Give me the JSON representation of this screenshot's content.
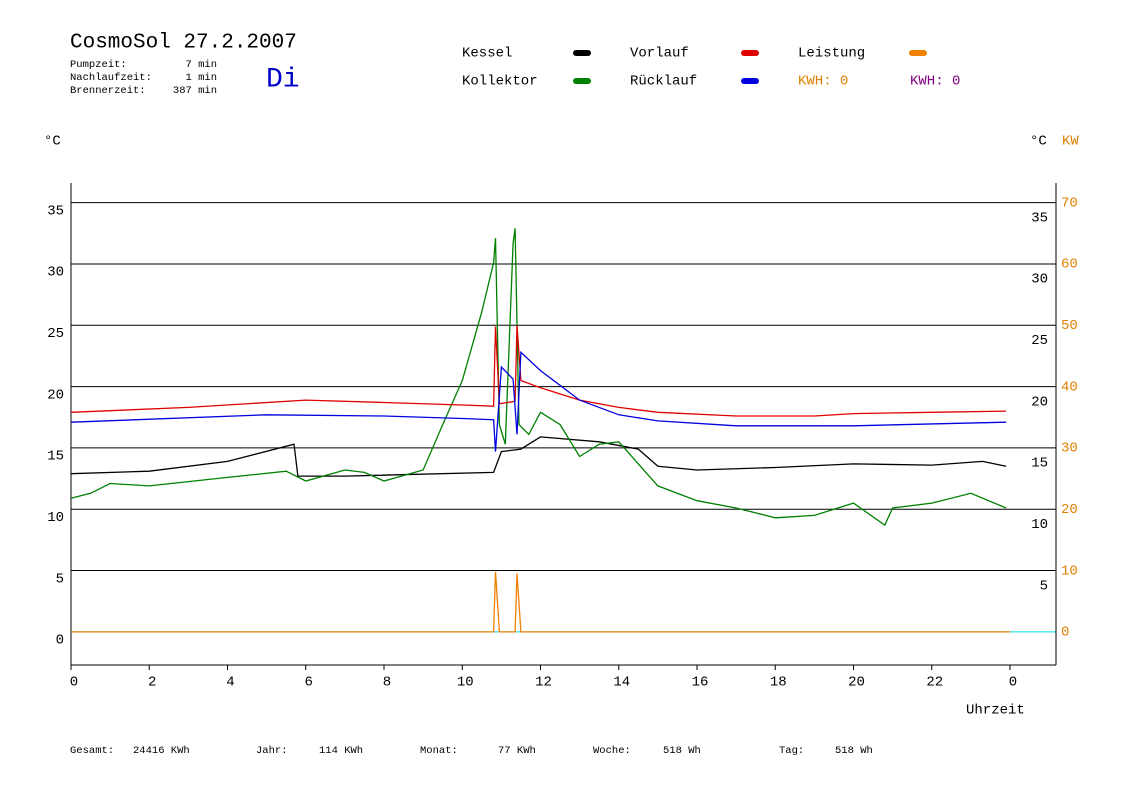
{
  "chart_data": {
    "type": "line",
    "title": "CosmoSol 27.2.2007",
    "weekday": "Di",
    "info": [
      [
        "Pumpzeit:",
        "7 min"
      ],
      [
        "Nachlaufzeit:",
        "1 min"
      ],
      [
        "Brennerzeit:",
        "387 min"
      ]
    ],
    "kwh_labels": [
      {
        "text": "KWH: 0",
        "color": "#e08000"
      },
      {
        "text": "KWH: 0",
        "color": "#800080"
      }
    ],
    "y_label": "°C",
    "y2_label_c": "°C",
    "y2_label": "KW",
    "x_label": "Uhrzeit",
    "xlim": [
      0,
      24
    ],
    "xticks": [
      0,
      2,
      4,
      6,
      8,
      10,
      12,
      14,
      16,
      18,
      20,
      22,
      {
        "value": 24,
        "label": "0"
      }
    ],
    "ylim": [
      -2.7,
      36.6
    ],
    "yticks": [
      0,
      5,
      10,
      15,
      20,
      25,
      30,
      35
    ],
    "y_right_ticks": [
      5,
      10,
      15,
      20,
      25,
      30,
      35
    ],
    "y2lim": [
      -5.4,
      73.2
    ],
    "y2ticks": [
      0,
      10,
      20,
      30,
      40,
      50,
      60,
      70
    ],
    "grid": true,
    "series": [
      {
        "name": "Kessel",
        "color": "#000000",
        "x": [
          0,
          2,
          4,
          5.7,
          5.8,
          7,
          10.8,
          11.0,
          11.5,
          12,
          13.5,
          14.5,
          15,
          16,
          18,
          20,
          22,
          23.3,
          23.9
        ],
        "values": [
          12.9,
          13.1,
          13.9,
          15.3,
          12.7,
          12.7,
          13.0,
          14.7,
          14.9,
          15.9,
          15.5,
          14.9,
          13.5,
          13.2,
          13.4,
          13.7,
          13.6,
          13.9,
          13.5
        ]
      },
      {
        "name": "Kollektor",
        "color": "#008000",
        "x": [
          0,
          0.5,
          1,
          2,
          4,
          5.5,
          6,
          7,
          7.5,
          8,
          9,
          9.5,
          10,
          10.5,
          10.8,
          10.85,
          10.95,
          11.1,
          11.3,
          11.35,
          11.45,
          11.7,
          12,
          12.5,
          13,
          13.5,
          14,
          14.5,
          15,
          16,
          17,
          18,
          19,
          20,
          20.8,
          21,
          22,
          23,
          23.9
        ],
        "values": [
          10.9,
          11.3,
          12.1,
          11.9,
          12.6,
          13.1,
          12.3,
          13.2,
          13.0,
          12.3,
          13.2,
          16.9,
          20.5,
          26.1,
          30.1,
          32.1,
          16.9,
          15.3,
          31.7,
          32.9,
          16.9,
          16.1,
          17.9,
          16.9,
          14.3,
          15.3,
          15.5,
          13.7,
          11.9,
          10.7,
          10.1,
          9.3,
          9.5,
          10.5,
          8.7,
          10.1,
          10.5,
          11.3,
          10.1
        ]
      },
      {
        "name": "Vorlauf",
        "color": "#e00000",
        "x": [
          0,
          3,
          6,
          8,
          10,
          10.8,
          10.85,
          10.95,
          11.35,
          11.4,
          11.5,
          12,
          13,
          14,
          15,
          17,
          19,
          20,
          22,
          23.9
        ],
        "values": [
          17.9,
          18.3,
          18.9,
          18.7,
          18.5,
          18.4,
          24.9,
          18.6,
          18.8,
          25.0,
          20.5,
          19.9,
          18.9,
          18.3,
          17.9,
          17.6,
          17.6,
          17.8,
          17.9,
          18.0
        ]
      },
      {
        "name": "Rücklauf",
        "color": "#0000e0",
        "x": [
          0,
          5,
          8,
          10,
          10.8,
          10.85,
          11.0,
          11.3,
          11.4,
          11.5,
          12,
          13,
          14,
          15,
          17,
          20,
          23.9
        ],
        "values": [
          17.1,
          17.7,
          17.6,
          17.4,
          17.3,
          14.7,
          21.6,
          20.6,
          16.1,
          22.8,
          21.3,
          18.9,
          17.7,
          17.2,
          16.8,
          16.8,
          17.1
        ]
      },
      {
        "name": "Leistung",
        "color": "#f08000",
        "axis": "y2",
        "x": [
          0,
          10.8,
          10.85,
          10.95,
          11.35,
          11.4,
          11.5,
          24
        ],
        "values": [
          0,
          0,
          9.8,
          0,
          0,
          9.5,
          0,
          0
        ]
      }
    ],
    "footer": [
      [
        "Gesamt:",
        "24416 KWh"
      ],
      [
        "Jahr:",
        "114 KWh"
      ],
      [
        "Monat:",
        "77 KWh"
      ],
      [
        "Woche:",
        "518 Wh"
      ],
      [
        "Tag:",
        "518 Wh"
      ]
    ]
  }
}
